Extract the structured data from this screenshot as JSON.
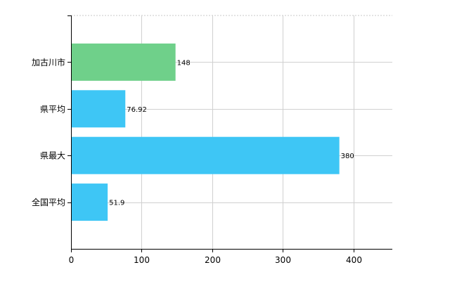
{
  "chart_data": {
    "type": "bar",
    "orientation": "horizontal",
    "categories": [
      "加古川市",
      "県平均",
      "県最大",
      "全国平均"
    ],
    "values": [
      148,
      76.92,
      380,
      51.9
    ],
    "bar_colors": [
      "#6fd08a",
      "#3ec6f5",
      "#3ec6f5",
      "#3ec6f5"
    ],
    "data_labels": [
      "148",
      "76.92",
      "380",
      "51.9"
    ],
    "x_ticks": [
      0,
      100,
      200,
      300,
      400
    ],
    "xlim": [
      0,
      455
    ],
    "grid": true,
    "legend": "none"
  }
}
